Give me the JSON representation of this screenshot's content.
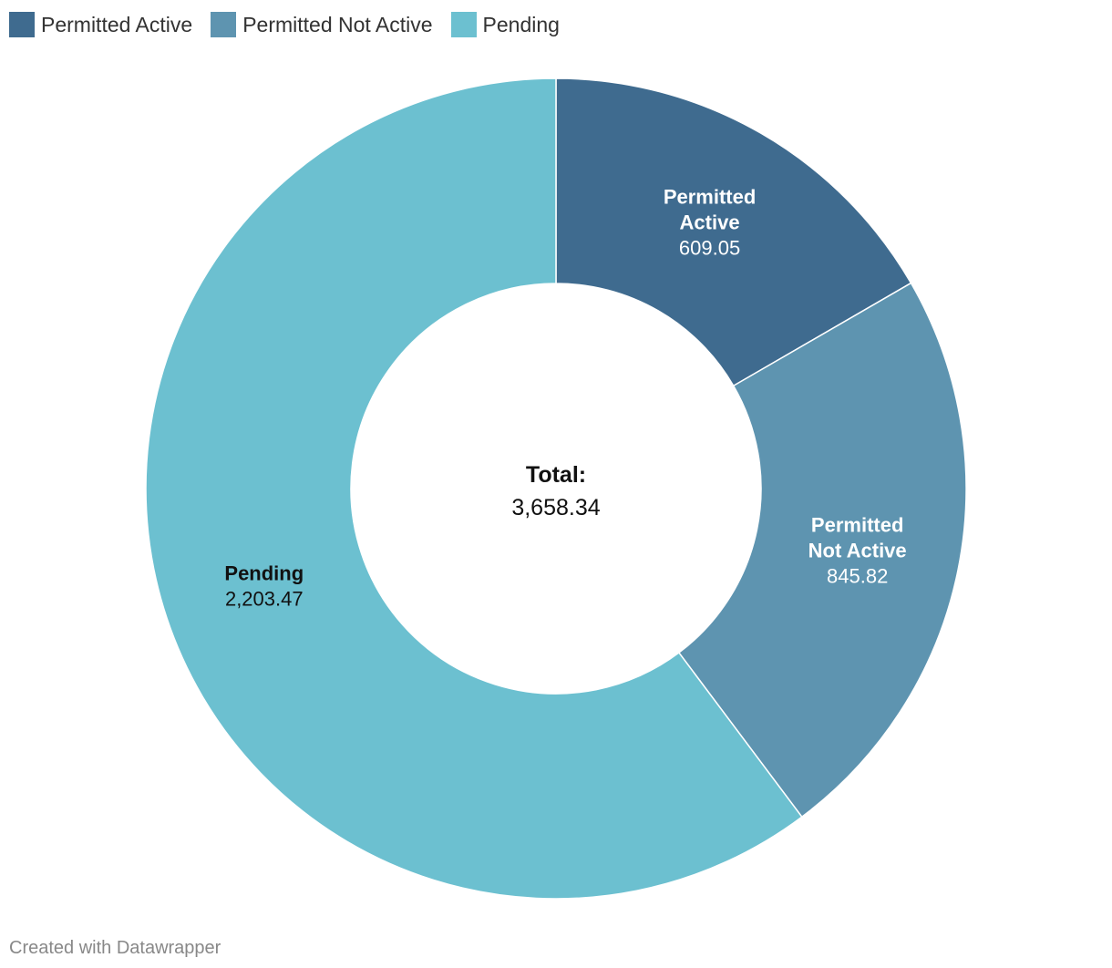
{
  "chart_data": {
    "type": "pie",
    "variant": "donut",
    "slices": [
      {
        "name": "Permitted Active",
        "label_lines": [
          "Permitted",
          "Active"
        ],
        "value": 609.05,
        "value_text": "609.05",
        "color": "#3f6b8f",
        "label_color": "#ffffff"
      },
      {
        "name": "Permitted Not Active",
        "label_lines": [
          "Permitted",
          "Not Active"
        ],
        "value": 845.82,
        "value_text": "845.82",
        "color": "#5e94b0",
        "label_color": "#ffffff"
      },
      {
        "name": "Pending",
        "label_lines": [
          "Pending"
        ],
        "value": 2203.47,
        "value_text": "2,203.47",
        "color": "#6cc0d0",
        "label_color": "#111111"
      }
    ],
    "center": {
      "title": "Total:",
      "value": "3,658.34"
    },
    "legend_position": "top-left"
  },
  "legend": [
    {
      "label": "Permitted Active",
      "color": "#3f6b8f"
    },
    {
      "label": "Permitted Not Active",
      "color": "#5e94b0"
    },
    {
      "label": "Pending",
      "color": "#6cc0d0"
    }
  ],
  "footer": {
    "credit": "Created with Datawrapper"
  }
}
